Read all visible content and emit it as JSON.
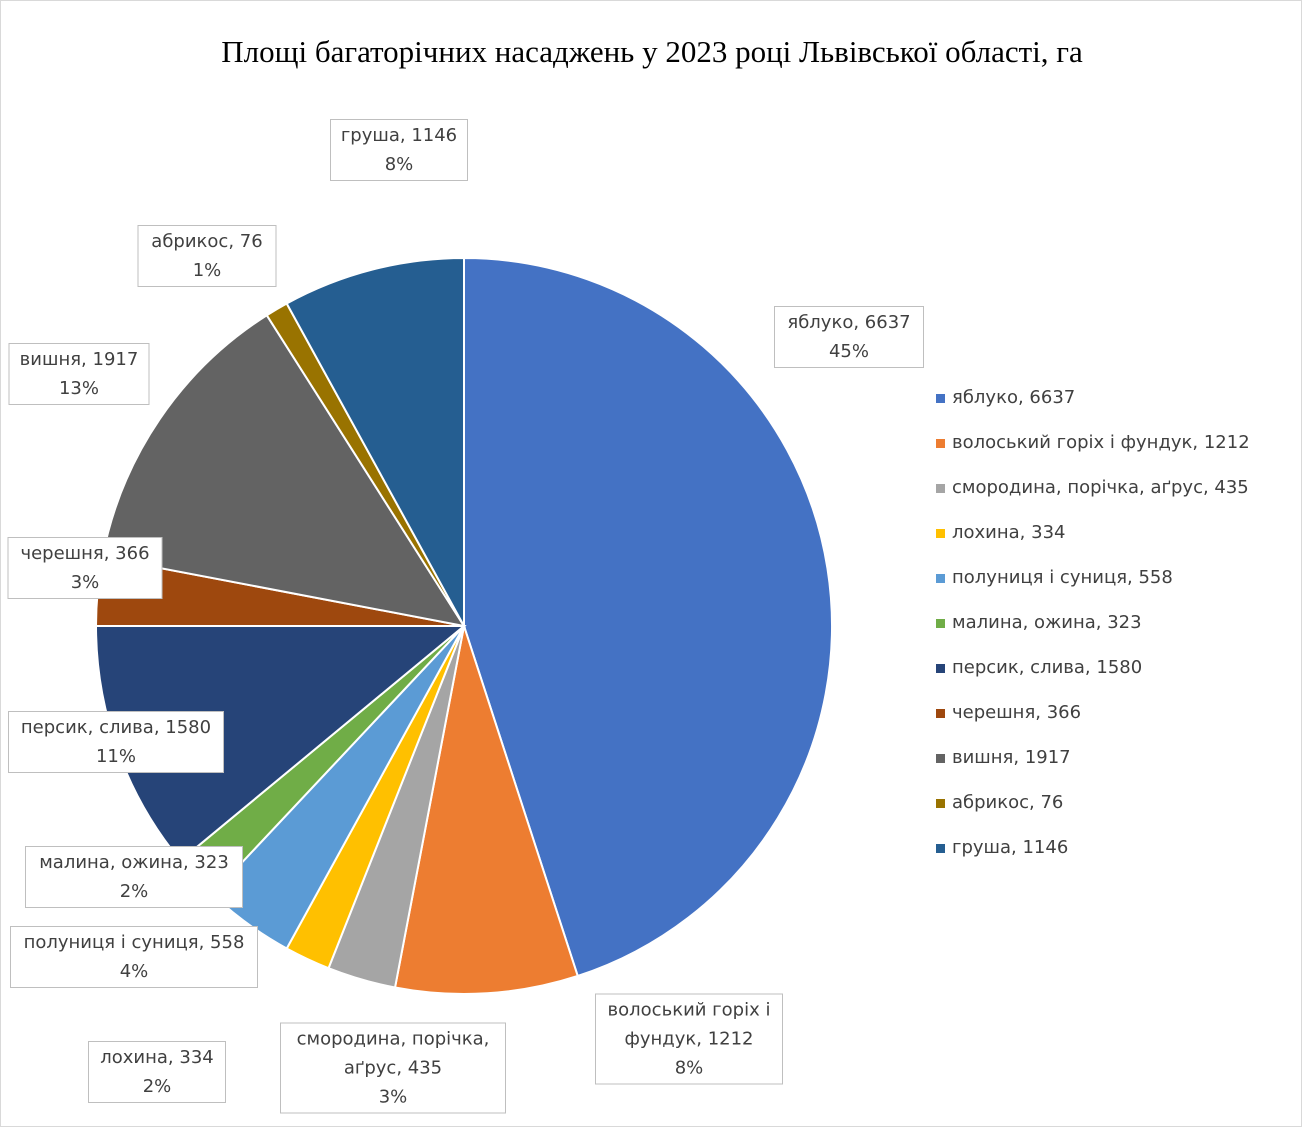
{
  "chart_data": {
    "type": "pie",
    "title": "Площі багаторічних насаджень у 2023 році Львівської області, га",
    "categories": [
      "яблуко, 6637",
      "волоський горіх і фундук, 1212",
      "смородина, порічка, аґрус, 435",
      "лохина, 334",
      "полуниця і суниця, 558",
      "малина, ожина, 323",
      "персик, слива, 1580",
      "черешня, 366",
      "вишня, 1917",
      "абрикос, 76",
      "груша, 1146"
    ],
    "values": [
      45,
      8,
      3,
      2,
      4,
      2,
      11,
      3,
      13,
      1,
      8
    ],
    "value_labels": [
      "45%",
      "8%",
      "3%",
      "2%",
      "4%",
      "2%",
      "11%",
      "3%",
      "13%",
      "1%",
      "8%"
    ],
    "colors": [
      "#4472c4",
      "#ed7d31",
      "#a5a5a5",
      "#ffc000",
      "#5b9bd5",
      "#70ad47",
      "#264478",
      "#9e480e",
      "#636363",
      "#997300",
      "#255e91"
    ],
    "legend": "right"
  }
}
